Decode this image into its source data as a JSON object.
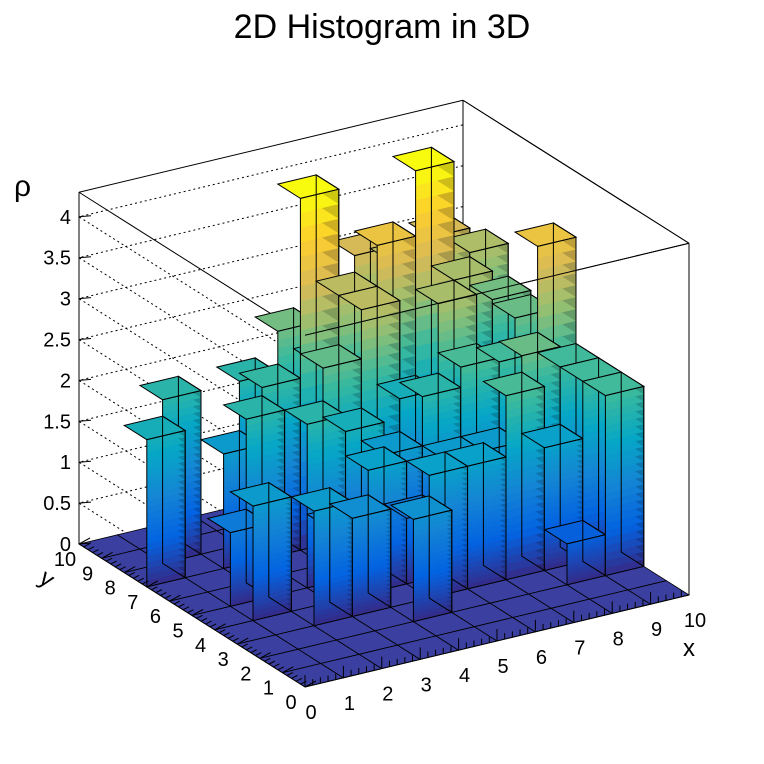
{
  "chart_data": {
    "type": "lego3d",
    "title": "2D Histogram in 3D",
    "xlabel": "x",
    "ylabel": "y",
    "zlabel": "ρ",
    "xlim": [
      0,
      10
    ],
    "ylim": [
      0,
      10
    ],
    "zlim": [
      0,
      4.3
    ],
    "x_ticks": [
      "0",
      "1",
      "2",
      "3",
      "4",
      "5",
      "6",
      "7",
      "8",
      "9",
      "10"
    ],
    "y_ticks": [
      "0",
      "1",
      "2",
      "3",
      "4",
      "5",
      "6",
      "7",
      "8",
      "9",
      "10"
    ],
    "z_ticks": [
      "0",
      "0.5",
      "1",
      "1.5",
      "2",
      "2.5",
      "3",
      "3.5",
      "4"
    ],
    "z_tick_values": [
      0,
      0.5,
      1,
      1.5,
      2,
      2.5,
      3,
      3.5,
      4
    ],
    "palette": "kBird",
    "colors": [
      "#352a87",
      "#0363e1",
      "#1485d4",
      "#06a7c6",
      "#38b99e",
      "#92bf73",
      "#d9ba56",
      "#fcce2e",
      "#f9fb0e"
    ],
    "bins_note": "z[iy][ix], iy=0..9 (y bin), ix=0..9 (x bin)",
    "z": [
      [
        0,
        0,
        0,
        0,
        0,
        0,
        0,
        0,
        0,
        0
      ],
      [
        0,
        0,
        0,
        0,
        0,
        0,
        0,
        0,
        0,
        0
      ],
      [
        0,
        0,
        0,
        0,
        1.25,
        0,
        0,
        0,
        0.5,
        2.2
      ],
      [
        0,
        0,
        1.4,
        1.2,
        0,
        1.5,
        1.5,
        2.25,
        1.5,
        2.2
      ],
      [
        0,
        1.4,
        0,
        0.9,
        1.5,
        0.8,
        1.4,
        1.4,
        2.45,
        2.2
      ],
      [
        0,
        0.9,
        0,
        2.0,
        1.8,
        1.4,
        2.0,
        2.25,
        2.2,
        3.5
      ],
      [
        0,
        0,
        2.0,
        0,
        2.4,
        3.0,
        1.8,
        2.85,
        1.5,
        2.45
      ],
      [
        1.8,
        0,
        1.4,
        2.1,
        4.3,
        3.0,
        3.5,
        4.3,
        2.85,
        2.5
      ],
      [
        0,
        2.0,
        0,
        2.0,
        2.5,
        2.0,
        3.2,
        3.0,
        3.2,
        2.9
      ],
      [
        0,
        0,
        0,
        0,
        0,
        0,
        0,
        0,
        0,
        0
      ]
    ]
  }
}
